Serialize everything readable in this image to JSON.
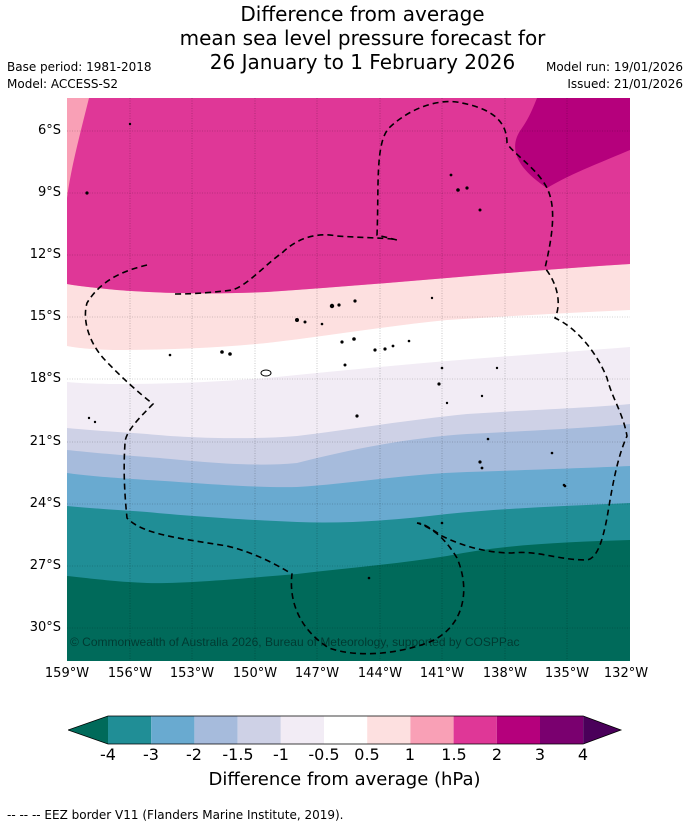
{
  "title_lines": [
    "Difference from average",
    "mean sea level pressure forecast for",
    "26 January to 1 February 2026"
  ],
  "meta_left": [
    "Base period: 1981-2018",
    "Model: ACCESS-S2"
  ],
  "meta_right": [
    "Model run: 19/01/2026",
    "Issued: 21/01/2026"
  ],
  "lat_labels": [
    "6°S",
    "9°S",
    "12°S",
    "15°S",
    "18°S",
    "21°S",
    "24°S",
    "27°S",
    "30°S"
  ],
  "lon_labels": [
    "159°W",
    "156°W",
    "153°W",
    "150°W",
    "147°W",
    "144°W",
    "141°W",
    "138°W",
    "135°W",
    "132°W"
  ],
  "copyright": "© Commonwealth of Australia 2026, Bureau of Meteorology, supported by COSPPac",
  "colorbar": {
    "ticks": [
      "-4",
      "-3",
      "-2",
      "-1.5",
      "-1",
      "-0.5",
      "0.5",
      "1",
      "1.5",
      "2",
      "3",
      "4"
    ],
    "colors": [
      "#006a5a",
      "#208e96",
      "#69aad0",
      "#a6bbdc",
      "#ced1e6",
      "#f2ecf5",
      "#ffffff",
      "#fde0e0",
      "#f9a0b6",
      "#df3797",
      "#b5007c",
      "#7a006f",
      "#4a005a"
    ],
    "label": "Difference from average (hPa)"
  },
  "footer": "--  --  -- EEZ border V11 (Flanders Marine Institute, 2019)."
}
